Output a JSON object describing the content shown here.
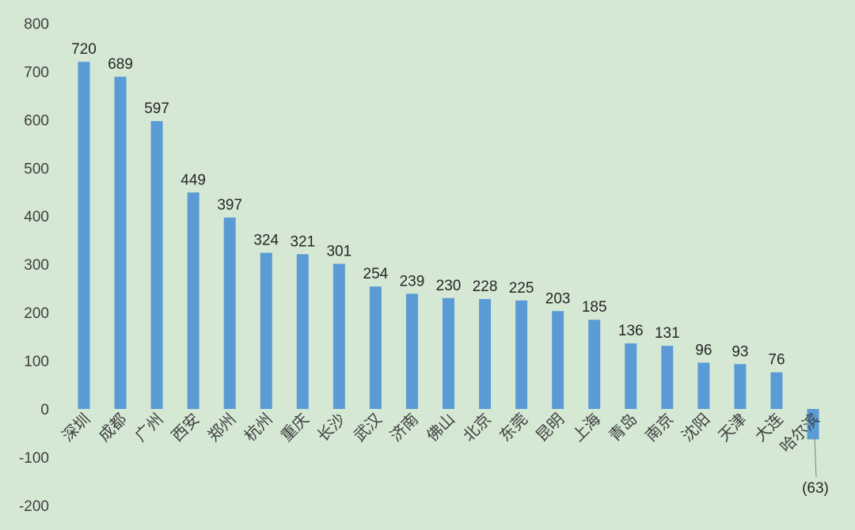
{
  "chart_data": {
    "type": "bar",
    "title": "",
    "xlabel": "",
    "ylabel": "",
    "ylim": [
      -200,
      800
    ],
    "yticks": [
      -200,
      -100,
      0,
      100,
      200,
      300,
      400,
      500,
      600,
      700,
      800
    ],
    "grid": false,
    "legend": "none",
    "bar_color": "#5b9bd5",
    "background_color": "#d5e8d4",
    "categories": [
      "深圳",
      "成都",
      "广州",
      "西安",
      "郑州",
      "杭州",
      "重庆",
      "长沙",
      "武汉",
      "济南",
      "佛山",
      "北京",
      "东莞",
      "昆明",
      "上海",
      "青岛",
      "南京",
      "沈阳",
      "天津",
      "大连",
      "哈尔滨"
    ],
    "values": [
      720,
      689,
      597,
      449,
      397,
      324,
      321,
      301,
      254,
      239,
      230,
      228,
      225,
      203,
      185,
      136,
      131,
      96,
      93,
      76,
      -63
    ],
    "data_labels": [
      "720",
      "689",
      "597",
      "449",
      "397",
      "324",
      "321",
      "301",
      "254",
      "239",
      "230",
      "228",
      "225",
      "203",
      "185",
      "136",
      "131",
      "96",
      "93",
      "76",
      "(63)"
    ]
  }
}
